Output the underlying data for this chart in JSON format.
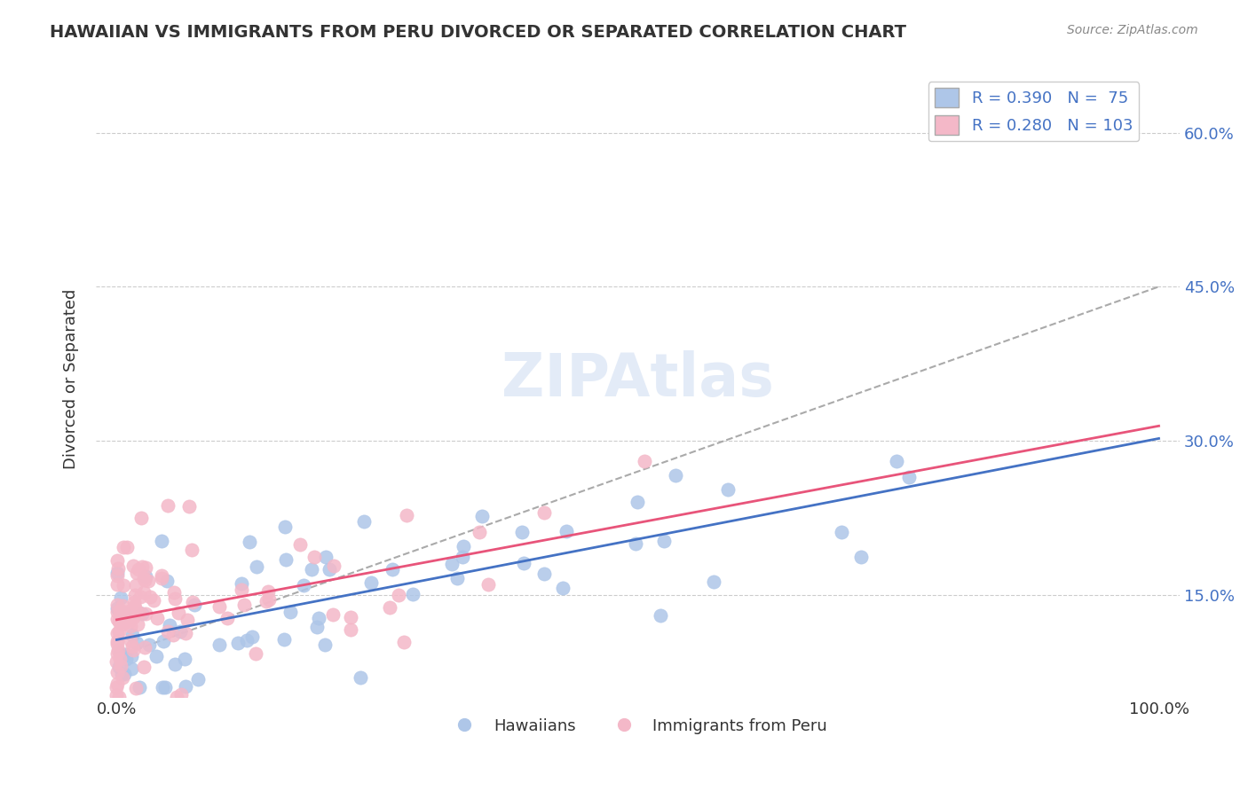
{
  "title": "HAWAIIAN VS IMMIGRANTS FROM PERU DIVORCED OR SEPARATED CORRELATION CHART",
  "source": "Source: ZipAtlas.com",
  "xlabel_bottom": "",
  "ylabel": "Divorced or Separated",
  "x_tick_labels": [
    "0.0%",
    "100.0%"
  ],
  "y_tick_labels_right": [
    "15.0%",
    "30.0%",
    "45.0%",
    "60.0%"
  ],
  "legend_entries": [
    {
      "label": "R = 0.390   N =  75",
      "color": "#aec6e8"
    },
    {
      "label": "R = 0.280   N = 103",
      "color": "#f4b8c8"
    }
  ],
  "bottom_legend": [
    "Hawaiians",
    "Immigrants from Peru"
  ],
  "hawaiians_color": "#aec6e8",
  "peru_color": "#f4b8c8",
  "hawaiians_line_color": "#4472c4",
  "peru_line_color": "#e8547a",
  "watermark": "ZIPAtlas",
  "background_color": "#ffffff",
  "grid_color": "#cccccc",
  "R_hawaii": 0.39,
  "N_hawaii": 75,
  "R_peru": 0.28,
  "N_peru": 103,
  "hawaii_seed": 42,
  "peru_seed": 7,
  "x_range": [
    0.0,
    1.0
  ],
  "y_range": [
    0.05,
    0.65
  ]
}
